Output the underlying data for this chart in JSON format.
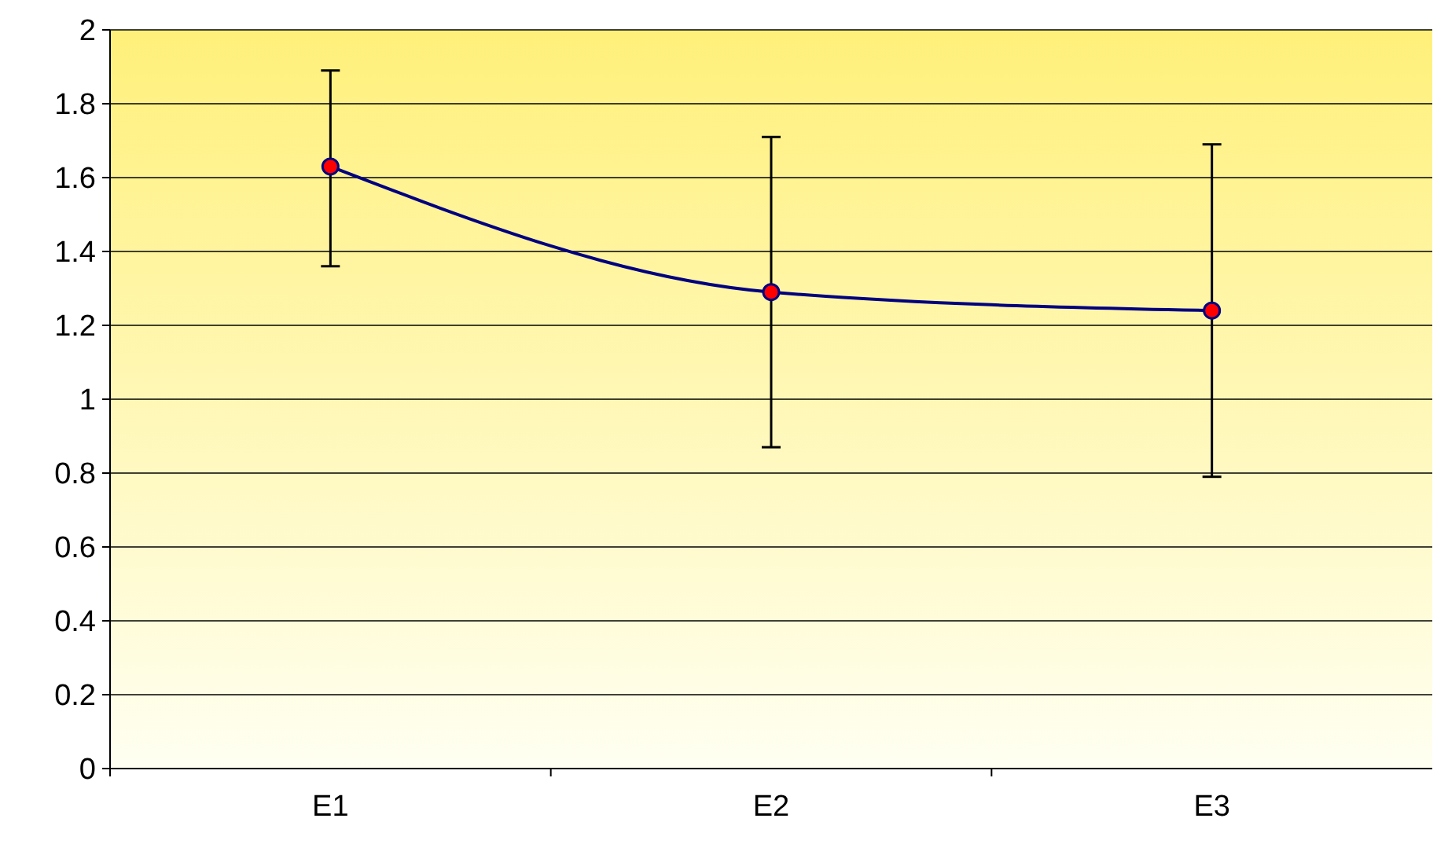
{
  "chart_data": {
    "type": "line",
    "categories": [
      "E1",
      "E2",
      "E3"
    ],
    "series": [
      {
        "color": "#000080",
        "values": [
          1.63,
          1.29,
          1.24
        ],
        "errors": [
          [
            1.36,
            1.89
          ],
          [
            0.87,
            1.71
          ],
          [
            0.79,
            1.69
          ]
        ]
      }
    ],
    "ylim": [
      0,
      2
    ],
    "yticks": [
      0,
      0.2,
      0.4,
      0.6,
      0.8,
      1,
      1.2,
      1.4,
      1.6,
      1.8,
      2
    ],
    "grid": "y",
    "marker": "circle",
    "line_style": "solid"
  }
}
